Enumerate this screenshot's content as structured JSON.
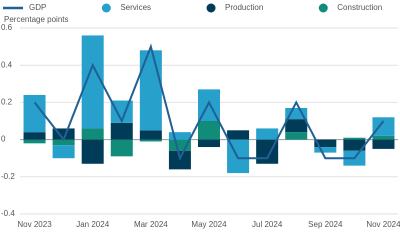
{
  "chart_data": {
    "type": "bar",
    "stacked": true,
    "y_label": "Percentage points",
    "categories": [
      "Nov 2023",
      null,
      "Jan 2024",
      null,
      "Mar 2024",
      null,
      "May 2024",
      null,
      "Jul 2024",
      null,
      "Sep 2024",
      null,
      "Nov 2024"
    ],
    "series": [
      {
        "name": "GDP",
        "type": "line",
        "color": "#206095",
        "values": [
          0.2,
          0,
          0.4,
          0.1,
          0.5,
          -0.1,
          0.2,
          -0.1,
          -0.1,
          0.2,
          -0.1,
          -0.1,
          0.1
        ]
      },
      {
        "name": "Services",
        "color": "#27a0cc",
        "values": [
          0.2,
          -0.07,
          0.5,
          0.12,
          0.43,
          0.04,
          0.17,
          -0.18,
          0.06,
          0.06,
          -0.03,
          -0.08,
          0.1
        ]
      },
      {
        "name": "Production",
        "color": "#003c57",
        "values": [
          0.04,
          0.06,
          -0.13,
          0.09,
          0.05,
          -0.1,
          -0.04,
          0.05,
          -0.13,
          0.07,
          -0.04,
          -0.06,
          -0.05
        ]
      },
      {
        "name": "Construction",
        "color": "#118c7b",
        "values": [
          -0.02,
          -0.03,
          0.06,
          -0.09,
          -0.01,
          -0.06,
          0.1,
          0,
          0,
          0.04,
          0,
          0.01,
          0.02
        ]
      }
    ],
    "ylim": [
      -0.4,
      0.6
    ],
    "yticks": [
      -0.4,
      -0.2,
      0,
      0.2,
      0.4,
      0.6
    ],
    "grid": true
  }
}
